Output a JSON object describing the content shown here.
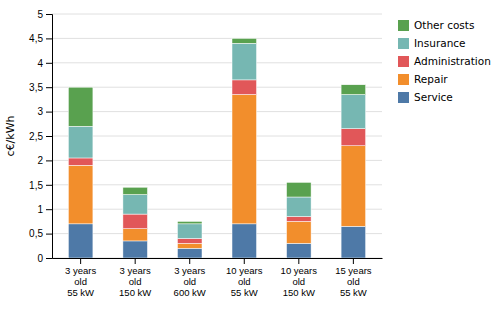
{
  "chart_data": {
    "type": "bar",
    "stacked": true,
    "grid": true,
    "legend": "right",
    "ylabel": "c€/kWh",
    "categories": [
      "3 years\nold\n55 kW",
      "3 years\nold\n150 kW",
      "3 years\nold\n600 kW",
      "10 years\nold\n55 kW",
      "10 years\nold\n150 kW",
      "15 years\nold\n55 kW"
    ],
    "series": [
      {
        "name": "Service",
        "values": [
          0.7,
          0.35,
          0.2,
          0.7,
          0.3,
          0.65
        ]
      },
      {
        "name": "Repair",
        "values": [
          1.2,
          0.25,
          0.1,
          2.65,
          0.45,
          1.65
        ]
      },
      {
        "name": "Administration",
        "values": [
          0.15,
          0.3,
          0.1,
          0.3,
          0.1,
          0.35
        ]
      },
      {
        "name": "Insurance",
        "values": [
          0.65,
          0.4,
          0.3,
          0.75,
          0.4,
          0.7
        ]
      },
      {
        "name": "Other costs",
        "values": [
          0.8,
          0.15,
          0.05,
          0.1,
          0.3,
          0.2
        ]
      }
    ],
    "ylim": [
      0,
      5
    ],
    "yticks": [
      0,
      {
        "value": 0.5,
        "label": "0,5"
      },
      1,
      {
        "value": 1.5,
        "label": "1,5"
      },
      2,
      {
        "value": 2.5,
        "label": "2,5"
      },
      3,
      {
        "value": 3.5,
        "label": "3,5"
      },
      4,
      {
        "value": 4.5,
        "label": "4,5"
      },
      5
    ]
  }
}
